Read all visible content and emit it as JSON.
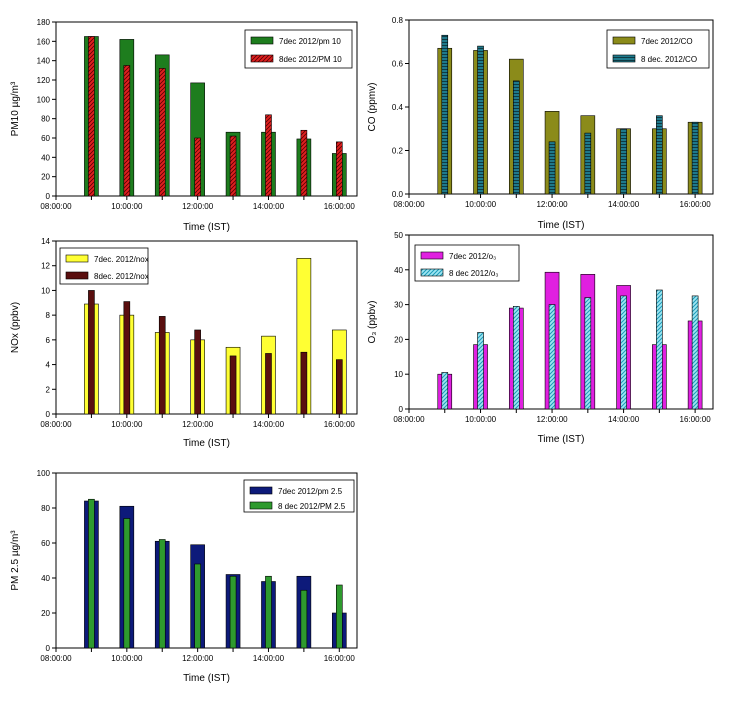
{
  "chart_data": [
    {
      "id": "pm10",
      "type": "bar",
      "title": "",
      "xlabel": "Time (IST)",
      "ylabel": "PM10 µg/m³",
      "ylim": [
        0,
        180
      ],
      "yticks": [
        0,
        20,
        40,
        60,
        80,
        100,
        120,
        140,
        160,
        180
      ],
      "xtick_labels": [
        "08:00:00",
        "10:00:00",
        "12:00:00",
        "14:00:00",
        "16:00:00"
      ],
      "hours": [
        9,
        10,
        11,
        12,
        13,
        14,
        15,
        16
      ],
      "legend_position": "top-right",
      "series": [
        {
          "name": "7dec 2012/pm 10",
          "values": [
            165,
            162,
            146,
            117,
            66,
            66,
            59,
            44
          ],
          "color": "#1e7d1e",
          "pattern": "solid"
        },
        {
          "name": "8dec 2012/PM 10",
          "values": [
            165,
            135,
            132,
            60,
            62,
            84,
            68,
            56
          ],
          "color": "#e02020",
          "pattern": "diagonal"
        }
      ]
    },
    {
      "id": "co",
      "type": "bar",
      "title": "",
      "xlabel": "Time (IST)",
      "ylabel": "CO (ppmv)",
      "ylim": [
        0,
        0.8
      ],
      "yticks": [
        0.0,
        0.2,
        0.4,
        0.6,
        0.8
      ],
      "ytick_labels": [
        "0.0",
        "0.2",
        "0.4",
        "0.6",
        "0.8"
      ],
      "xtick_labels": [
        "08:00:00",
        "10:00:00",
        "12:00:00",
        "14:00:00",
        "16:00:00"
      ],
      "hours": [
        9,
        10,
        11,
        12,
        13,
        14,
        15,
        16
      ],
      "legend_position": "top-right",
      "series": [
        {
          "name": "7dec 2012/CO",
          "values": [
            0.67,
            0.66,
            0.62,
            0.38,
            0.36,
            0.3,
            0.3,
            0.33
          ],
          "color": "#8b8b1a",
          "pattern": "solid"
        },
        {
          "name": "8 dec. 2012/CO",
          "values": [
            0.73,
            0.68,
            0.52,
            0.24,
            0.28,
            0.3,
            0.36,
            0.33
          ],
          "color": "#1f7a8c",
          "pattern": "horizontal"
        }
      ]
    },
    {
      "id": "nox",
      "type": "bar",
      "title": "",
      "xlabel": "Time (IST)",
      "ylabel": "NOx (ppbv)",
      "ylim": [
        0,
        14
      ],
      "yticks": [
        0,
        2,
        4,
        6,
        8,
        10,
        12,
        14
      ],
      "xtick_labels": [
        "08:00:00",
        "10:00:00",
        "12:00:00",
        "14:00:00",
        "16:00:00"
      ],
      "hours": [
        9,
        10,
        11,
        12,
        13,
        14,
        15,
        16
      ],
      "legend_position": "top-left",
      "series": [
        {
          "name": "7dec. 2012/nox",
          "values": [
            8.9,
            8.0,
            6.6,
            6.0,
            5.4,
            6.3,
            12.6,
            6.8
          ],
          "color": "#ffff33",
          "pattern": "solid"
        },
        {
          "name": "8dec. 2012/nox",
          "values": [
            10.0,
            9.1,
            7.9,
            6.8,
            4.7,
            4.9,
            5.0,
            4.4
          ],
          "color": "#5a0f0f",
          "pattern": "solid"
        }
      ]
    },
    {
      "id": "o3",
      "type": "bar",
      "title": "",
      "xlabel": "Time (IST)",
      "ylabel": "O₃ (ppbv)",
      "ylim": [
        0,
        50
      ],
      "yticks": [
        0,
        10,
        20,
        30,
        40,
        50
      ],
      "xtick_labels": [
        "08:00:00",
        "10:00:00",
        "12:00:00",
        "14:00:00",
        "16:00:00"
      ],
      "hours": [
        9,
        10,
        11,
        12,
        13,
        14,
        15,
        16
      ],
      "legend_position": "top-left",
      "series": [
        {
          "name": "7dec 2012/o₃",
          "values": [
            10,
            18.5,
            29,
            39.3,
            38.7,
            35.5,
            18.5,
            25.3
          ],
          "color": "#e020e0",
          "pattern": "solid"
        },
        {
          "name": "8 dec 2012/o₃",
          "values": [
            10.5,
            22,
            29.5,
            30,
            32,
            32.5,
            34.2,
            32.5
          ],
          "color": "#40c8e0",
          "pattern": "diagonal"
        }
      ]
    },
    {
      "id": "pm25",
      "type": "bar",
      "title": "",
      "xlabel": "Time (IST)",
      "ylabel": "PM 2.5 µg/m³",
      "ylim": [
        0,
        100
      ],
      "yticks": [
        0,
        20,
        40,
        60,
        80,
        100
      ],
      "xtick_labels": [
        "08:00:00",
        "10:00:00",
        "12:00:00",
        "14:00:00",
        "16:00:00"
      ],
      "hours": [
        9,
        10,
        11,
        12,
        13,
        14,
        15,
        16
      ],
      "legend_position": "top-right",
      "series": [
        {
          "name": "7dec 2012/pm 2.5",
          "values": [
            84,
            81,
            61,
            59,
            42,
            38,
            41,
            20
          ],
          "color": "#0d1a7a",
          "pattern": "solid"
        },
        {
          "name": "8 dec 2012/PM 2.5",
          "values": [
            85,
            74,
            62,
            48,
            41,
            41,
            33,
            36
          ],
          "color": "#2e9a2e",
          "pattern": "solid"
        }
      ]
    }
  ]
}
